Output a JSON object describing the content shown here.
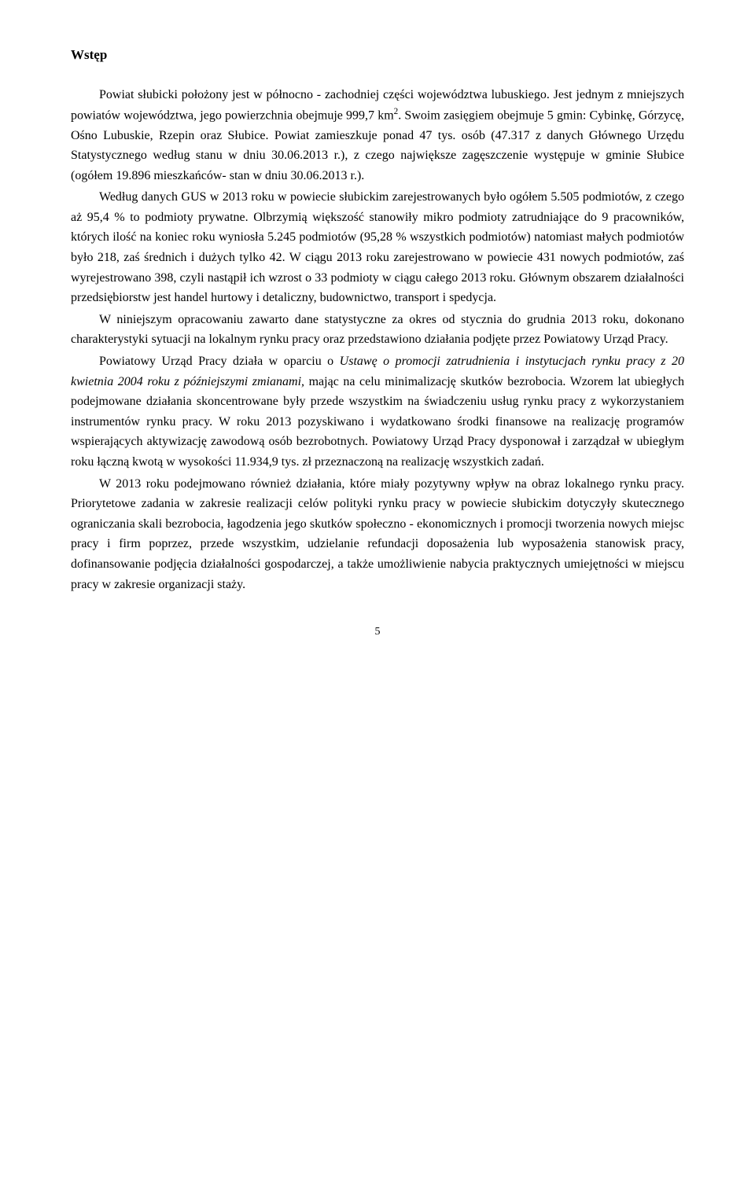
{
  "title": "Wstęp",
  "paragraphs": {
    "p1_part1": "Powiat słubicki położony jest w północno - zachodniej części województwa lubuskiego. Jest jednym z mniejszych powiatów województwa, jego powierzchnia obejmuje 999,7 km",
    "p1_sup": "2",
    "p1_part2": ". Swoim zasięgiem obejmuje 5 gmin: Cybinkę, Górzycę, Ośno Lubuskie, Rzepin oraz Słubice. Powiat zamieszkuje ponad 47 tys. osób (47.317 z danych Głównego Urzędu Statystycznego według stanu w dniu 30.06.2013 r.), z czego największe zagęszczenie występuje w gminie Słubice (ogółem 19.896 mieszkańców- stan w dniu 30.06.2013 r.).",
    "p2": "Według danych GUS w 2013 roku w powiecie słubickim zarejestrowanych było ogółem 5.505 podmiotów, z czego aż 95,4 % to podmioty prywatne. Olbrzymią większość stanowiły mikro podmioty zatrudniające do 9 pracowników, których ilość na koniec roku wyniosła 5.245 podmiotów (95,28 % wszystkich podmiotów) natomiast małych podmiotów było 218, zaś średnich i dużych tylko 42. W ciągu 2013 roku zarejestrowano w powiecie 431 nowych podmiotów, zaś wyrejestrowano 398, czyli nastąpił ich wzrost o 33 podmioty w ciągu całego 2013 roku. Głównym obszarem działalności przedsiębiorstw jest handel hurtowy i detaliczny, budownictwo, transport i spedycja.",
    "p3": "W niniejszym opracowaniu zawarto dane statystyczne za okres od stycznia do grudnia 2013 roku, dokonano charakterystyki sytuacji na lokalnym rynku pracy oraz przedstawiono działania podjęte przez Powiatowy Urząd Pracy.",
    "p4_part1": "Powiatowy Urząd Pracy działa w oparciu o ",
    "p4_italic": "Ustawę o promocji zatrudnienia i instytucjach rynku pracy z 20 kwietnia 2004 roku z późniejszymi zmianami,",
    "p4_part2": " mając na celu minimalizację skutków bezrobocia. Wzorem lat ubiegłych podejmowane działania skoncentrowane były przede wszystkim na świadczeniu usług rynku pracy z wykorzystaniem instrumentów rynku pracy. W roku 2013 pozyskiwano i wydatkowano środki finansowe na realizację programów wspierających aktywizację zawodową osób bezrobotnych. Powiatowy Urząd Pracy dysponował i zarządzał w ubiegłym roku łączną kwotą w wysokości 11.934,9 tys. zł przeznaczoną na realizację wszystkich zadań.",
    "p5": "W 2013 roku podejmowano również działania, które miały pozytywny wpływ na obraz lokalnego rynku pracy. Priorytetowe zadania w zakresie realizacji celów polityki rynku pracy w powiecie słubickim dotyczyły skutecznego ograniczania skali bezrobocia, łagodzenia jego skutków społeczno - ekonomicznych i promocji tworzenia nowych miejsc pracy i firm poprzez, przede wszystkim, udzielanie refundacji doposażenia lub wyposażenia stanowisk pracy, dofinansowanie podjęcia działalności gospodarczej, a także umożliwienie nabycia praktycznych umiejętności w miejscu pracy w zakresie organizacji staży."
  },
  "pageNumber": "5"
}
